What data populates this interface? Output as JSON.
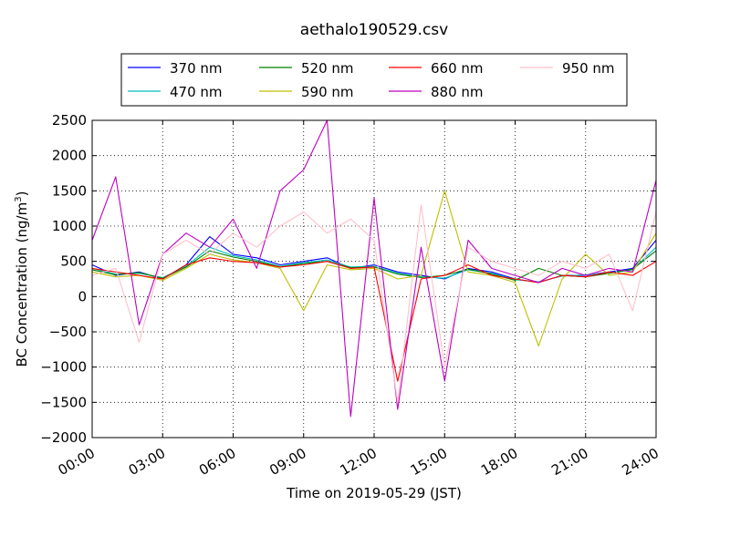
{
  "chart_data": {
    "type": "line",
    "title": "aethalo190529.csv",
    "xlabel": "Time on 2019-05-29 (JST)",
    "ylabel": "BC Concentration (ng/m",
    "ylabel_superscript": "3",
    "ylabel_suffix": ")",
    "xlim_hours": [
      0,
      24
    ],
    "ylim": [
      -2000,
      2500
    ],
    "x_ticks": [
      "00:00",
      "03:00",
      "06:00",
      "09:00",
      "12:00",
      "15:00",
      "18:00",
      "21:00",
      "24:00"
    ],
    "y_ticks": [
      2500,
      2000,
      1500,
      1000,
      500,
      0,
      -500,
      -1000,
      -1500,
      -2000
    ],
    "grid": true,
    "legend_placement": "top-center",
    "legend": [
      {
        "name": "370 nm",
        "color": "#0000ff"
      },
      {
        "name": "520 nm",
        "color": "#008000"
      },
      {
        "name": "660 nm",
        "color": "#ff0000"
      },
      {
        "name": "950 nm",
        "color": "#ffc0cb"
      },
      {
        "name": "470 nm",
        "color": "#00bfbf"
      },
      {
        "name": "590 nm",
        "color": "#bfbf00"
      },
      {
        "name": "880 nm",
        "color": "#bf00bf"
      }
    ],
    "series": [
      {
        "name": "370 nm",
        "color": "#0000ff",
        "x": [
          "00:00",
          "01:00",
          "02:00",
          "03:00",
          "04:00",
          "05:00",
          "06:00",
          "07:00",
          "08:00",
          "09:00",
          "10:00",
          "11:00",
          "12:00",
          "13:00",
          "14:00",
          "15:00",
          "16:00",
          "17:00",
          "18:00",
          "19:00",
          "20:00",
          "21:00",
          "22:00",
          "23:00",
          "24:00"
        ],
        "y": [
          450,
          300,
          350,
          250,
          450,
          850,
          600,
          550,
          450,
          500,
          550,
          400,
          450,
          350,
          300,
          250,
          400,
          350,
          250,
          200,
          300,
          300,
          350,
          400,
          800
        ]
      },
      {
        "name": "470 nm",
        "color": "#00bfbf",
        "x": [
          "00:00",
          "01:00",
          "02:00",
          "03:00",
          "04:00",
          "05:00",
          "06:00",
          "07:00",
          "08:00",
          "09:00",
          "10:00",
          "11:00",
          "12:00",
          "13:00",
          "14:00",
          "15:00",
          "16:00",
          "17:00",
          "18:00",
          "19:00",
          "20:00",
          "21:00",
          "22:00",
          "23:00",
          "24:00"
        ],
        "y": [
          400,
          320,
          330,
          270,
          430,
          700,
          580,
          520,
          430,
          480,
          520,
          420,
          430,
          330,
          280,
          260,
          380,
          330,
          240,
          210,
          290,
          310,
          330,
          380,
          700
        ]
      },
      {
        "name": "520 nm",
        "color": "#008000",
        "x": [
          "00:00",
          "01:00",
          "02:00",
          "03:00",
          "04:00",
          "05:00",
          "06:00",
          "07:00",
          "08:00",
          "09:00",
          "10:00",
          "11:00",
          "12:00",
          "13:00",
          "14:00",
          "15:00",
          "16:00",
          "17:00",
          "18:00",
          "19:00",
          "20:00",
          "21:00",
          "22:00",
          "23:00",
          "24:00"
        ],
        "y": [
          380,
          310,
          340,
          260,
          420,
          650,
          560,
          500,
          420,
          470,
          500,
          410,
          420,
          320,
          270,
          300,
          390,
          320,
          230,
          400,
          300,
          280,
          330,
          390,
          650
        ]
      },
      {
        "name": "590 nm",
        "color": "#bfbf00",
        "x": [
          "00:00",
          "01:00",
          "02:00",
          "03:00",
          "04:00",
          "05:00",
          "06:00",
          "07:00",
          "08:00",
          "09:00",
          "10:00",
          "11:00",
          "12:00",
          "13:00",
          "14:00",
          "15:00",
          "16:00",
          "17:00",
          "18:00",
          "19:00",
          "20:00",
          "21:00",
          "22:00",
          "23:00",
          "24:00"
        ],
        "y": [
          350,
          280,
          300,
          230,
          400,
          600,
          520,
          480,
          400,
          -200,
          450,
          380,
          400,
          250,
          300,
          1500,
          350,
          300,
          200,
          -700,
          250,
          600,
          300,
          350,
          900
        ]
      },
      {
        "name": "660 nm",
        "color": "#ff0000",
        "x": [
          "00:00",
          "01:00",
          "02:00",
          "03:00",
          "04:00",
          "05:00",
          "06:00",
          "07:00",
          "08:00",
          "09:00",
          "10:00",
          "11:00",
          "12:00",
          "13:00",
          "14:00",
          "15:00",
          "16:00",
          "17:00",
          "18:00",
          "19:00",
          "20:00",
          "21:00",
          "22:00",
          "23:00",
          "24:00"
        ],
        "y": [
          400,
          350,
          300,
          250,
          450,
          550,
          500,
          480,
          420,
          450,
          500,
          400,
          420,
          -1200,
          250,
          300,
          450,
          300,
          250,
          200,
          300,
          280,
          350,
          300,
          500
        ]
      },
      {
        "name": "880 nm",
        "color": "#bf00bf",
        "x": [
          "00:00",
          "01:00",
          "02:00",
          "03:00",
          "04:00",
          "05:00",
          "06:00",
          "07:00",
          "08:00",
          "09:00",
          "10:00",
          "11:00",
          "12:00",
          "13:00",
          "14:00",
          "15:00",
          "16:00",
          "17:00",
          "18:00",
          "19:00",
          "20:00",
          "21:00",
          "22:00",
          "23:00",
          "24:00"
        ],
        "y": [
          800,
          1700,
          -400,
          600,
          900,
          700,
          1100,
          400,
          1500,
          1800,
          2500,
          -1700,
          1400,
          -1600,
          700,
          -1200,
          800,
          400,
          300,
          200,
          400,
          300,
          400,
          350,
          1650
        ]
      },
      {
        "name": "950 nm",
        "color": "#ffc0cb",
        "x": [
          "00:00",
          "01:00",
          "02:00",
          "03:00",
          "04:00",
          "05:00",
          "06:00",
          "07:00",
          "08:00",
          "09:00",
          "10:00",
          "11:00",
          "12:00",
          "13:00",
          "14:00",
          "15:00",
          "16:00",
          "17:00",
          "18:00",
          "19:00",
          "20:00",
          "21:00",
          "22:00",
          "23:00",
          "24:00"
        ],
        "y": [
          300,
          400,
          -650,
          600,
          800,
          600,
          900,
          700,
          1000,
          1200,
          900,
          1100,
          800,
          -1500,
          1300,
          -1000,
          700,
          500,
          400,
          300,
          500,
          400,
          600,
          -200,
          1200
        ]
      }
    ]
  }
}
